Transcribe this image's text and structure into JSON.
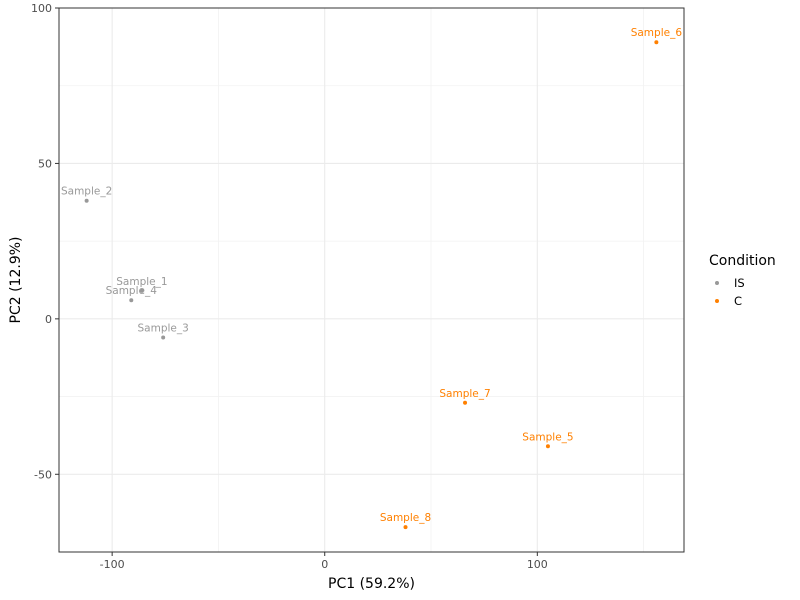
{
  "chart_data": {
    "type": "scatter",
    "title": "",
    "xlabel": "PC1 (59.2%)",
    "ylabel": "PC2 (12.9%)",
    "xlim": [
      -125,
      169
    ],
    "ylim": [
      -75,
      100
    ],
    "x_ticks": [
      -100,
      0,
      100
    ],
    "x_tick_labels": [
      "-100",
      "0",
      "100"
    ],
    "x_minor": [
      -50,
      50,
      150
    ],
    "y_ticks": [
      100,
      50,
      0,
      -50
    ],
    "y_tick_labels": [
      "100",
      "50",
      "0",
      "-50"
    ],
    "y_minor": [
      75,
      25,
      -25
    ],
    "grid": true,
    "legend": {
      "title": "Condition",
      "placement": "right",
      "entries": [
        {
          "name": "IS",
          "color": "#999999"
        },
        {
          "name": "C",
          "color": "#ff8000"
        }
      ]
    },
    "series": [
      {
        "name": "IS",
        "color": "#999999",
        "points": [
          {
            "label": "Sample_1",
            "x": -86,
            "y": 9
          },
          {
            "label": "Sample_2",
            "x": -112,
            "y": 38
          },
          {
            "label": "Sample_3",
            "x": -76,
            "y": -6
          },
          {
            "label": "Sample_4",
            "x": -91,
            "y": 6
          }
        ]
      },
      {
        "name": "C",
        "color": "#ff8000",
        "points": [
          {
            "label": "Sample_5",
            "x": 105,
            "y": -41
          },
          {
            "label": "Sample_6",
            "x": 156,
            "y": 89
          },
          {
            "label": "Sample_7",
            "x": 66,
            "y": -27
          },
          {
            "label": "Sample_8",
            "x": 38,
            "y": -67
          }
        ]
      }
    ]
  }
}
